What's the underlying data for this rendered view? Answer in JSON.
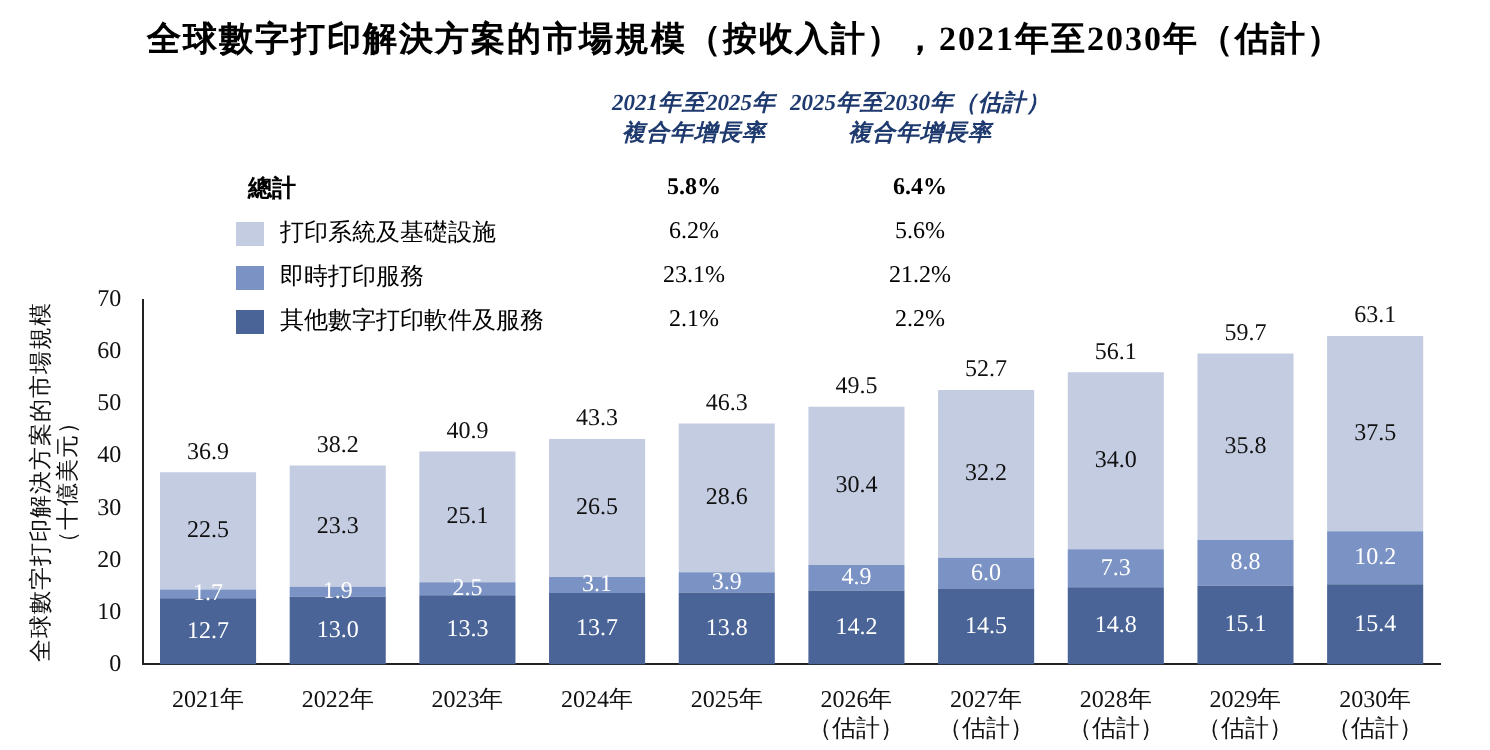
{
  "chart_data": {
    "type": "bar",
    "title": "全球數字打印解決方案的市場規模（按收入計），2021年至2030年（估計）",
    "categories": [
      "2021年",
      "2022年",
      "2023年",
      "2024年",
      "2025年",
      "2026年（估計）",
      "2027年（估計）",
      "2028年（估計）",
      "2029年（估計）",
      "2030年（估計）"
    ],
    "series": [
      {
        "name": "其他數字打印軟件及服務",
        "color": "#4a6498",
        "values": [
          12.7,
          13.0,
          13.3,
          13.7,
          13.8,
          14.2,
          14.5,
          14.8,
          15.1,
          15.4
        ],
        "value_labels": [
          "12.7",
          "13.0",
          "13.3",
          "13.7",
          "13.8",
          "14.2",
          "14.5",
          "14.8",
          "15.1",
          "15.4"
        ]
      },
      {
        "name": "即時打印服務",
        "color": "#7b93c4",
        "values": [
          1.7,
          1.9,
          2.5,
          3.1,
          3.9,
          4.9,
          6.0,
          7.3,
          8.8,
          10.2
        ],
        "value_labels": [
          "1.7",
          "1.9",
          "2.5",
          "3.1",
          "3.9",
          "4.9",
          "6.0",
          "7.3",
          "8.8",
          "10.2"
        ]
      },
      {
        "name": "打印系統及基礎設施",
        "color": "#c3cce1",
        "values": [
          22.5,
          23.3,
          25.1,
          26.5,
          28.6,
          30.4,
          32.2,
          34.0,
          35.8,
          37.5
        ],
        "value_labels": [
          "22.5",
          "23.3",
          "25.1",
          "26.5",
          "28.6",
          "30.4",
          "32.2",
          "34.0",
          "35.8",
          "37.5"
        ]
      }
    ],
    "stacked": true,
    "totals": [
      "36.9",
      "38.2",
      "40.9",
      "43.3",
      "46.3",
      "49.5",
      "52.7",
      "56.1",
      "59.7",
      "63.1"
    ],
    "ylabel": "全球數字打印解決方案的市場規模（十億美元）",
    "ylim": [
      0,
      70
    ],
    "yticks": [
      0,
      10,
      20,
      30,
      40,
      50,
      60,
      70
    ],
    "grid": false,
    "legend": "top left",
    "annotations": [
      "2021年至2025年",
      "複合年增長率",
      "2025年至2030年（估計）",
      "複合年增長率",
      "總計",
      "5.8%",
      "6.4%",
      "2.1%",
      "2.2%",
      "23.1%",
      "21.2%",
      "6.2%",
      "5.6%"
    ]
  }
}
